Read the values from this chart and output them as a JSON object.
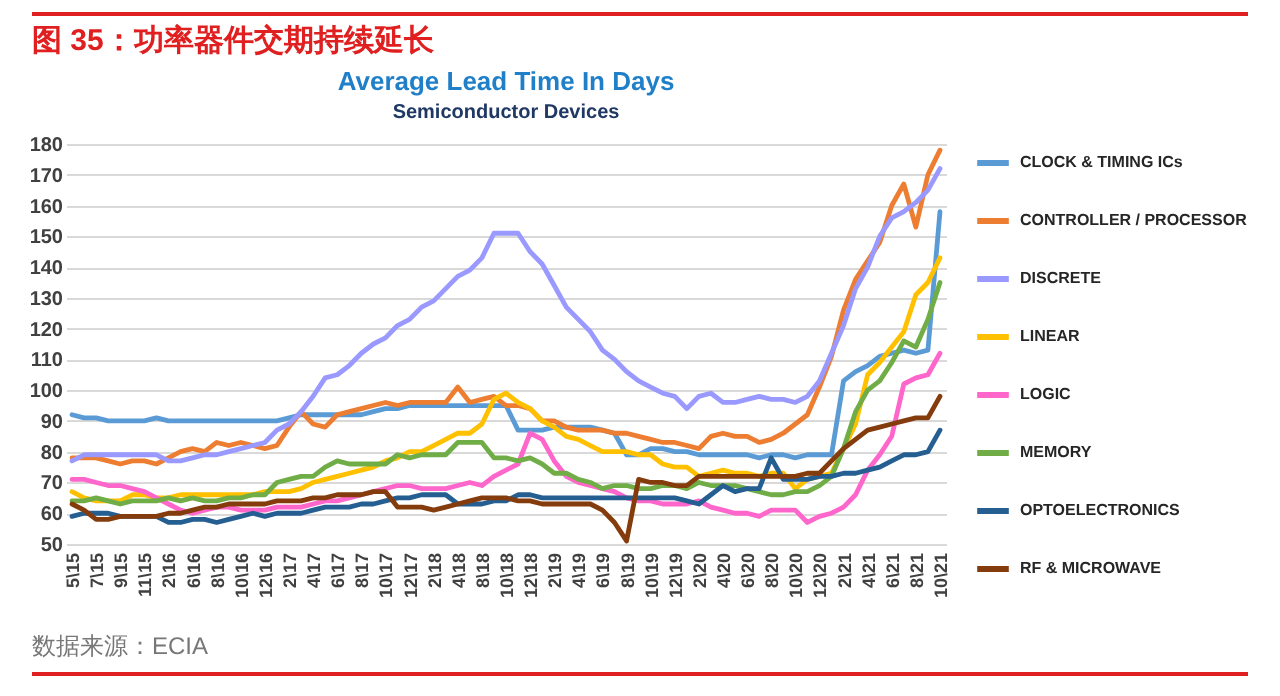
{
  "chart_data": {
    "type": "line",
    "title": "Average Lead Time In Days",
    "subtitle": "Semiconductor Devices",
    "annotations": [
      "图 35：功率器件交期持续延长",
      "数据来源：ECIA"
    ],
    "categories": [
      "5\\15",
      null,
      "7\\15",
      null,
      "9\\15",
      null,
      "11\\15",
      null,
      "2\\16",
      null,
      "6\\16",
      null,
      "8\\16",
      null,
      "10\\16",
      null,
      "12\\16",
      null,
      "2\\17",
      null,
      "4\\17",
      null,
      "6\\17",
      null,
      "8\\17",
      null,
      "10\\17",
      null,
      "12\\17",
      null,
      "2\\18",
      null,
      "4\\18",
      null,
      "8\\18",
      null,
      "10\\18",
      null,
      "12\\18",
      null,
      "2\\19",
      null,
      "4\\19",
      null,
      "6\\19",
      null,
      "8\\19",
      null,
      "10\\19",
      null,
      "12\\19",
      null,
      "2\\20",
      null,
      "4\\20",
      null,
      "6\\20",
      null,
      "8\\20",
      null,
      "10\\20",
      null,
      "12\\20",
      null,
      "2\\21",
      null,
      "4\\21",
      null,
      "6\\21",
      null,
      "8\\21",
      null,
      "10\\21"
    ],
    "series": [
      {
        "name": "CLOCK & TIMING ICs",
        "color": "#5b9bd5",
        "values": [
          92,
          91,
          91,
          90,
          90,
          90,
          90,
          91,
          90,
          90,
          90,
          90,
          90,
          90,
          90,
          90,
          90,
          90,
          91,
          92,
          92,
          92,
          92,
          92,
          92,
          93,
          94,
          94,
          95,
          95,
          95,
          95,
          95,
          95,
          95,
          95,
          95,
          87,
          87,
          87,
          88,
          88,
          88,
          88,
          87,
          86,
          79,
          79,
          81,
          81,
          80,
          80,
          79,
          79,
          79,
          79,
          79,
          78,
          79,
          79,
          78,
          79,
          79,
          79,
          103,
          106,
          108,
          111,
          112,
          113,
          112,
          113,
          158
        ]
      },
      {
        "name": "CONTROLLER / PROCESSOR",
        "color": "#ed7d31",
        "values": [
          78,
          78,
          78,
          77,
          76,
          77,
          77,
          76,
          78,
          80,
          81,
          80,
          83,
          82,
          83,
          82,
          81,
          82,
          88,
          93,
          89,
          88,
          92,
          93,
          94,
          95,
          96,
          95,
          96,
          96,
          96,
          96,
          101,
          96,
          97,
          98,
          95,
          95,
          94,
          90,
          90,
          88,
          87,
          87,
          87,
          86,
          86,
          85,
          84,
          83,
          83,
          82,
          81,
          85,
          86,
          85,
          85,
          83,
          84,
          86,
          89,
          92,
          101,
          111,
          126,
          136,
          142,
          148,
          160,
          167,
          153,
          170,
          178
        ]
      },
      {
        "name": "DISCRETE",
        "color": "#9999ff",
        "values": [
          77,
          79,
          79,
          79,
          79,
          79,
          79,
          79,
          77,
          77,
          78,
          79,
          79,
          80,
          81,
          82,
          83,
          87,
          89,
          93,
          98,
          104,
          105,
          108,
          112,
          115,
          117,
          121,
          123,
          127,
          129,
          133,
          137,
          139,
          143,
          151,
          151,
          151,
          145,
          141,
          134,
          127,
          123,
          119,
          113,
          110,
          106,
          103,
          101,
          99,
          98,
          94,
          98,
          99,
          96,
          96,
          97,
          98,
          97,
          97,
          96,
          98,
          103,
          112,
          121,
          133,
          140,
          150,
          156,
          158,
          161,
          165,
          172
        ]
      },
      {
        "name": "LINEAR",
        "color": "#ffc000",
        "values": [
          67,
          65,
          64,
          64,
          64,
          66,
          66,
          65,
          65,
          66,
          66,
          66,
          66,
          66,
          66,
          66,
          67,
          67,
          67,
          68,
          70,
          71,
          72,
          73,
          74,
          75,
          77,
          78,
          80,
          80,
          82,
          84,
          86,
          86,
          89,
          97,
          99,
          96,
          94,
          90,
          88,
          85,
          84,
          82,
          80,
          80,
          80,
          79,
          79,
          76,
          75,
          75,
          72,
          73,
          74,
          73,
          73,
          72,
          73,
          73,
          68,
          71,
          72,
          73,
          81,
          89,
          105,
          109,
          114,
          119,
          131,
          135,
          143
        ]
      },
      {
        "name": "LOGIC",
        "color": "#ff66cc",
        "values": [
          71,
          71,
          70,
          69,
          69,
          68,
          67,
          65,
          63,
          61,
          60,
          61,
          62,
          62,
          61,
          61,
          61,
          62,
          62,
          62,
          63,
          64,
          64,
          65,
          66,
          67,
          68,
          69,
          69,
          68,
          68,
          68,
          69,
          70,
          69,
          72,
          74,
          76,
          86,
          84,
          77,
          72,
          70,
          69,
          68,
          67,
          65,
          64,
          64,
          63,
          63,
          63,
          64,
          62,
          61,
          60,
          60,
          59,
          61,
          61,
          61,
          57,
          59,
          60,
          62,
          66,
          74,
          79,
          85,
          102,
          104,
          105,
          112
        ]
      },
      {
        "name": "MEMORY",
        "color": "#70ad47",
        "values": [
          64,
          64,
          65,
          64,
          63,
          64,
          64,
          64,
          65,
          64,
          65,
          64,
          64,
          65,
          65,
          66,
          66,
          70,
          71,
          72,
          72,
          75,
          77,
          76,
          76,
          76,
          76,
          79,
          78,
          79,
          79,
          79,
          83,
          83,
          83,
          78,
          78,
          77,
          78,
          76,
          73,
          73,
          71,
          70,
          68,
          69,
          69,
          68,
          68,
          69,
          69,
          68,
          70,
          69,
          69,
          69,
          68,
          67,
          66,
          66,
          67,
          67,
          69,
          72,
          81,
          93,
          100,
          103,
          109,
          116,
          114,
          123,
          135
        ]
      },
      {
        "name": "OPTOELECTRONICS",
        "color": "#255e91",
        "values": [
          59,
          60,
          60,
          60,
          59,
          59,
          59,
          59,
          57,
          57,
          58,
          58,
          57,
          58,
          59,
          60,
          59,
          60,
          60,
          60,
          61,
          62,
          62,
          62,
          63,
          63,
          64,
          65,
          65,
          66,
          66,
          66,
          63,
          63,
          63,
          64,
          64,
          66,
          66,
          65,
          65,
          65,
          65,
          65,
          65,
          65,
          65,
          65,
          65,
          65,
          65,
          64,
          63,
          66,
          69,
          67,
          68,
          68,
          78,
          71,
          71,
          71,
          72,
          72,
          73,
          73,
          74,
          75,
          77,
          79,
          79,
          80,
          87
        ]
      },
      {
        "name": "RF & MICROWAVE",
        "color": "#843c0c",
        "values": [
          63,
          61,
          58,
          58,
          59,
          59,
          59,
          59,
          60,
          60,
          61,
          62,
          62,
          63,
          63,
          63,
          63,
          64,
          64,
          64,
          65,
          65,
          66,
          66,
          66,
          67,
          67,
          62,
          62,
          62,
          61,
          62,
          63,
          64,
          65,
          65,
          65,
          64,
          64,
          63,
          63,
          63,
          63,
          63,
          61,
          57,
          51,
          71,
          70,
          70,
          69,
          69,
          72,
          72,
          72,
          72,
          72,
          72,
          72,
          72,
          72,
          73,
          73,
          77,
          81,
          84,
          87,
          88,
          89,
          90,
          91,
          91,
          98
        ]
      }
    ],
    "ylim": [
      50,
      180
    ],
    "yticks": [
      50,
      60,
      70,
      80,
      90,
      100,
      110,
      120,
      130,
      140,
      150,
      160,
      170,
      180
    ],
    "grid": "y",
    "legend": "right",
    "marker": "none",
    "line_style": "solid"
  }
}
